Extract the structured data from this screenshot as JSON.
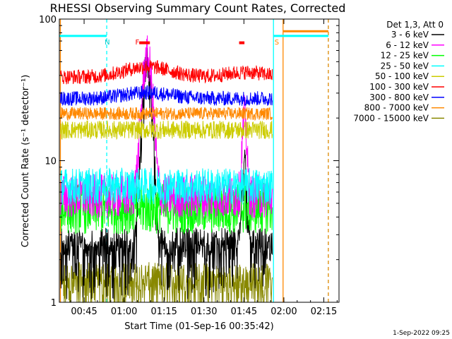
{
  "chart_data": {
    "type": "line",
    "title": "RHESSI Observing Summary Count Rates, Corrected",
    "ylabel": "Corrected Count Rate (s⁻¹ detector⁻¹)",
    "xlabel": "Start Time (01-Sep-16 00:35:42)",
    "y_scale": "log",
    "ylim": [
      1,
      100
    ],
    "y_ticks": [
      {
        "value": 1,
        "label": "1"
      },
      {
        "value": 10,
        "label": "10"
      },
      {
        "value": 100,
        "label": "100"
      }
    ],
    "xlim_minutes": [
      0,
      105
    ],
    "x_ticks": [
      {
        "minute": 9.3,
        "label": "00:45"
      },
      {
        "minute": 24.3,
        "label": "01:00"
      },
      {
        "minute": 39.3,
        "label": "01:15"
      },
      {
        "minute": 54.3,
        "label": "01:30"
      },
      {
        "minute": 69.3,
        "label": "01:45"
      },
      {
        "minute": 84.3,
        "label": "02:00"
      },
      {
        "minute": 99.3,
        "label": "02:15"
      }
    ],
    "legend_header": "Det 1,3, Att 0",
    "legend_position": "right",
    "data_end_minute": 80,
    "series": [
      {
        "name": "3 - 6 keV",
        "color": "#000000",
        "baseline": 2.1,
        "noise": 0.35,
        "peaks": [
          {
            "m": 33,
            "w": 2.0,
            "v": 40
          },
          {
            "m": 69.5,
            "w": 1.0,
            "v": 7
          }
        ]
      },
      {
        "name": "6 - 12 keV",
        "color": "#ff00ff",
        "baseline": 5.6,
        "noise": 0.12,
        "peaks": [
          {
            "m": 33,
            "w": 2.3,
            "v": 48
          },
          {
            "m": 69.5,
            "w": 1.0,
            "v": 15
          }
        ]
      },
      {
        "name": "12 - 25 keV",
        "color": "#00ff00",
        "baseline": 4.6,
        "noise": 0.14,
        "peaks": []
      },
      {
        "name": "25 - 50 keV",
        "color": "#00ffff",
        "baseline": 6.6,
        "noise": 0.1,
        "peaks": []
      },
      {
        "name": "50 - 100 keV",
        "color": "#cccc00",
        "baseline": 16.5,
        "noise": 0.05,
        "peaks": []
      },
      {
        "name": "100 - 300 keV",
        "color": "#ff0000",
        "baseline": 39,
        "noise": 0.04,
        "peaks": []
      },
      {
        "name": "300 - 800 keV",
        "color": "#0000ff",
        "baseline": 27.5,
        "noise": 0.04,
        "peaks": []
      },
      {
        "name": "800 - 7000 keV",
        "color": "#ff8800",
        "baseline": 21.5,
        "noise": 0.035,
        "peaks": []
      },
      {
        "name": "7000 - 15000 keV",
        "color": "#888800",
        "baseline": 1.2,
        "noise": 0.3,
        "peaks": []
      }
    ],
    "annotations": [
      {
        "text": "N",
        "minute": 17,
        "color": "#00cccc"
      },
      {
        "text": "F",
        "minute": 28.5,
        "color": "#ff0000"
      },
      {
        "text": "S",
        "minute": 80.8,
        "color": "#ff8800"
      }
    ],
    "flare_bars": [
      {
        "from": 30,
        "to": 34,
        "value": 68,
        "color": "#ff0000"
      },
      {
        "from": 67.5,
        "to": 69.5,
        "value": 68,
        "color": "#ff0000"
      }
    ],
    "night_vlines": [
      {
        "minute": 17.8,
        "color": "#00ffff",
        "style": "dashed"
      },
      {
        "minute": 80.4,
        "color": "#00ffff",
        "style": "solid"
      },
      {
        "minute": 101,
        "color": "#00ffff",
        "style": "dashed"
      }
    ],
    "saa_vlines": [
      {
        "minute": 0.4,
        "color": "#ff8800",
        "style": "solid"
      },
      {
        "minute": 84,
        "color": "#ff8800",
        "style": "solid"
      },
      {
        "minute": 101,
        "color": "#ff8800",
        "style": "dashed"
      }
    ],
    "night_bars": [
      {
        "from": 0,
        "to": 17.8,
        "value": 76,
        "color": "#00ffff"
      },
      {
        "from": 80.4,
        "to": 101,
        "value": 76,
        "color": "#00ffff"
      }
    ],
    "saa_bars": [
      {
        "from": 84,
        "to": 101,
        "value": 82,
        "color": "#ff8800"
      }
    ]
  },
  "footer": {
    "date_stamp": "1-Sep-2022 09:25"
  }
}
